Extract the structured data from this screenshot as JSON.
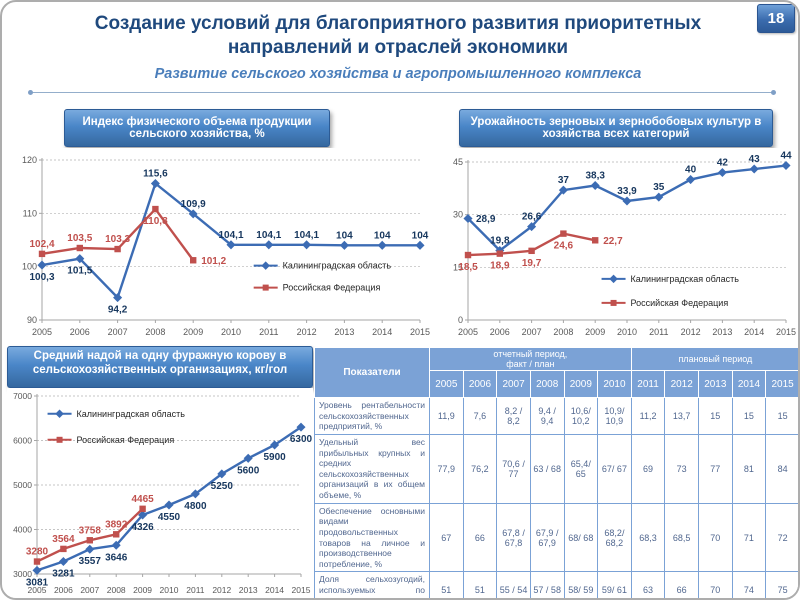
{
  "page": {
    "number": "18"
  },
  "header": {
    "title": "Создание условий для благоприятного развития приоритетных направлений и отраслей экономики",
    "subtitle": "Развитие сельского хозяйства и агропромышленного комплекса"
  },
  "panels": {
    "chart1_title": "Индекс физического объема продукции сельского хозяйства, %",
    "chart2_title": "Урожайность зерновых и зернобобовых культур в хозяйства всех категорий",
    "chart3_title": "Средний надой на одну фуражную корову в сельскохозяйственных организациях, кг/гол"
  },
  "colors": {
    "title_blue": "#1F497D",
    "subtitle_blue": "#4a7ebb",
    "panel_header_blue": "#4a86c8",
    "series_blue": "#3C6CB4",
    "series_red": "#C0504D",
    "table_header_blue": "#7ba2d6"
  },
  "chart_data": [
    {
      "type": "line",
      "title": "Индекс физического объема продукции сельского хозяйства, %",
      "categories": [
        "2005",
        "2006",
        "2007",
        "2008",
        "2009",
        "2010",
        "2011",
        "2012",
        "2013",
        "2014",
        "2015"
      ],
      "ylim": [
        90,
        120
      ],
      "yticks": [
        90,
        100,
        110,
        120
      ],
      "grid": "dashed-horizontal",
      "legend_pos": {
        "x": 0.56,
        "y": 0.66,
        "gap": 22
      },
      "margins": {
        "l": 30,
        "r": 12,
        "t": 12,
        "b": 20
      },
      "tickFont": 9,
      "labelFont": 10,
      "series": [
        {
          "name": "Калининградская область",
          "color": "#3C6CB4",
          "label_color": "#17375E",
          "marker": "diamond",
          "values": [
            100.3,
            101.5,
            94.2,
            115.6,
            109.9,
            104.1,
            104.1,
            104.1,
            104,
            104,
            104
          ],
          "labels": [
            "100,3",
            "101,5",
            "94,2",
            "115,6",
            "109,9",
            "104,1",
            "104,1",
            "104,1",
            "104",
            "104",
            "104"
          ],
          "label_side": [
            "b",
            "b",
            "b",
            "a",
            "a",
            "a",
            "a",
            "a",
            "a",
            "a",
            "a"
          ]
        },
        {
          "name": "Российская Федерация",
          "color": "#C0504D",
          "label_color": "#C0504D",
          "marker": "square",
          "values": [
            102.4,
            103.5,
            103.3,
            110.8,
            101.2,
            null,
            null,
            null,
            null,
            null,
            null
          ],
          "labels": [
            "102,4",
            "103,5",
            "103,3",
            "110,8",
            "101,2",
            null,
            null,
            null,
            null,
            null,
            null
          ],
          "label_side": [
            "a",
            "a",
            "a",
            "b",
            "r"
          ]
        }
      ]
    },
    {
      "type": "line",
      "title": "Урожайность зерновых и зернобобовых культур в хозяйства всех категорий",
      "categories": [
        "2005",
        "2006",
        "2007",
        "2008",
        "2009",
        "2010",
        "2011",
        "2012",
        "2013",
        "2014",
        "2015"
      ],
      "ylim": [
        0,
        45
      ],
      "yticks": [
        0,
        15,
        30,
        45
      ],
      "grid": "dashed-horizontal",
      "legend_pos": {
        "x": 0.42,
        "y": 0.74,
        "gap": 24
      },
      "margins": {
        "l": 26,
        "r": 12,
        "t": 14,
        "b": 20
      },
      "tickFont": 9,
      "labelFont": 10,
      "series": [
        {
          "name": "Калининградская область",
          "color": "#3C6CB4",
          "label_color": "#17375E",
          "marker": "diamond",
          "values": [
            28.9,
            19.8,
            26.6,
            37,
            38.3,
            33.9,
            35,
            40,
            42,
            43,
            44
          ],
          "labels": [
            "28,9",
            "19,8",
            "26,6",
            "37",
            "38,3",
            "33,9",
            "35",
            "40",
            "42",
            "43",
            "44"
          ],
          "label_side": [
            "r",
            "a",
            "a",
            "a",
            "a",
            "a",
            "a",
            "a",
            "a",
            "a",
            "a"
          ]
        },
        {
          "name": "Российская Федерация",
          "color": "#C0504D",
          "label_color": "#C0504D",
          "marker": "square",
          "values": [
            18.5,
            18.9,
            19.7,
            24.6,
            22.7,
            null,
            null,
            null,
            null,
            null,
            null
          ],
          "labels": [
            "18,5",
            "18,9",
            "19,7",
            "24,6",
            "22,7",
            null,
            null,
            null,
            null,
            null,
            null
          ],
          "label_side": [
            "b",
            "b",
            "b",
            "b",
            "r"
          ]
        }
      ]
    },
    {
      "type": "line",
      "title": "Средний надой на одну фуражную корову в сельскохозяйственных организациях, кг/гол",
      "categories": [
        "2005",
        "2006",
        "2007",
        "2008",
        "2009",
        "2010",
        "2011",
        "2012",
        "2013",
        "2014",
        "2015"
      ],
      "ylim": [
        3000,
        7000
      ],
      "yticks": [
        3000,
        4000,
        5000,
        6000,
        7000
      ],
      "grid": "dashed-horizontal",
      "legend_pos": {
        "x": 0.04,
        "y": 0.1,
        "gap": 26
      },
      "margins": {
        "l": 30,
        "r": 12,
        "t": 8,
        "b": 24
      },
      "tickFont": 8.5,
      "labelFont": 10,
      "series": [
        {
          "name": "Калининградская область",
          "color": "#3C6CB4",
          "label_color": "#17375E",
          "marker": "diamond",
          "values": [
            3081,
            3281,
            3557,
            3646,
            4326,
            4550,
            4800,
            5250,
            5600,
            5900,
            6300
          ],
          "labels": [
            "3081",
            "3281",
            "3557",
            "3646",
            "4326",
            "4550",
            "4800",
            "5250",
            "5600",
            "5900",
            "6300"
          ],
          "label_side": [
            "b",
            "b",
            "b",
            "b",
            "b",
            "b",
            "b",
            "b",
            "b",
            "b",
            "b"
          ]
        },
        {
          "name": "Российская Федерация",
          "color": "#C0504D",
          "label_color": "#C0504D",
          "marker": "square",
          "values": [
            3280,
            3564,
            3758,
            3892,
            4465,
            null,
            null,
            null,
            null,
            null,
            null
          ],
          "labels": [
            "3280",
            "3564",
            "3758",
            "3892",
            "4465",
            null,
            null,
            null,
            null,
            null,
            null
          ],
          "label_side": [
            "a",
            "a",
            "a",
            "a",
            "a"
          ]
        }
      ]
    }
  ],
  "table": {
    "col_header": "Показатели",
    "report_period_line1": "отчетный период,",
    "report_period_line2": "факт / план",
    "plan_period": "плановый период",
    "years": [
      "2005",
      "2006",
      "2007",
      "2008",
      "2009",
      "2010",
      "2011",
      "2012",
      "2013",
      "2014",
      "2015"
    ],
    "rows": [
      {
        "label": "Уровень рентабельности сельскохозяйственных предприятий, %",
        "values": [
          "11,9",
          "7,6",
          "8,2 / 8,2",
          "9,4 / 9,4",
          "10,6/ 10,2",
          "10,9/ 10,9",
          "11,2",
          "13,7",
          "15",
          "15",
          "15"
        ]
      },
      {
        "label": "Удельный вес прибыльных крупных и средних сельскохозяйственных организаций в их общем объеме, %",
        "values": [
          "77,9",
          "76,2",
          "70,6 / 77",
          "63 / 68",
          "65,4/ 65",
          "67/ 67",
          "69",
          "73",
          "77",
          "81",
          "84"
        ]
      },
      {
        "label": "Обеспечение основными видами продовольственных товаров на личное и производственное потребление, %",
        "values": [
          "67",
          "66",
          "67,8 / 67,8",
          "67,9 / 67,9",
          "68/ 68",
          "68,2/ 68,2",
          "68,3",
          "68,5",
          "70",
          "71",
          "72"
        ]
      },
      {
        "label": "Доля сельхозугодий, используемых по назначению, %",
        "values": [
          "51",
          "51",
          "55 / 54",
          "57 / 58",
          "58/ 59",
          "59/ 61",
          "63",
          "66",
          "70",
          "74",
          "75"
        ]
      }
    ]
  }
}
